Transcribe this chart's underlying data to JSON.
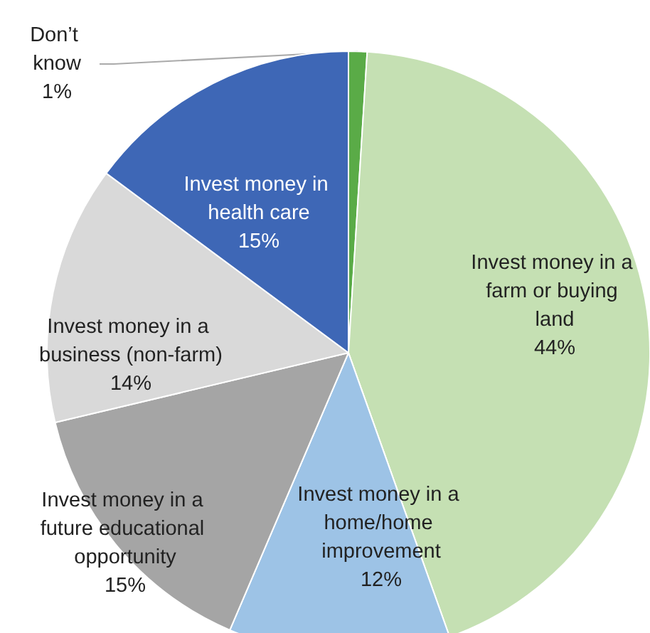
{
  "chart_data": {
    "type": "pie",
    "categories": [
      "Don’t know",
      "Invest money in a farm or buying land",
      "Invest money in a home/home improvement",
      "Invest money in a future educational opportunity",
      "Invest money in a business (non-farm)",
      "Invest money in health care"
    ],
    "values": [
      1,
      44,
      12,
      15,
      14,
      15
    ],
    "value_labels": [
      "1%",
      "44%",
      "12%",
      "15%",
      "14%",
      "15%"
    ],
    "colors": [
      "#5aab47",
      "#c5e0b3",
      "#9dc3e6",
      "#a5a5a5",
      "#d9d9d9",
      "#3e67b6"
    ],
    "legend": false
  }
}
